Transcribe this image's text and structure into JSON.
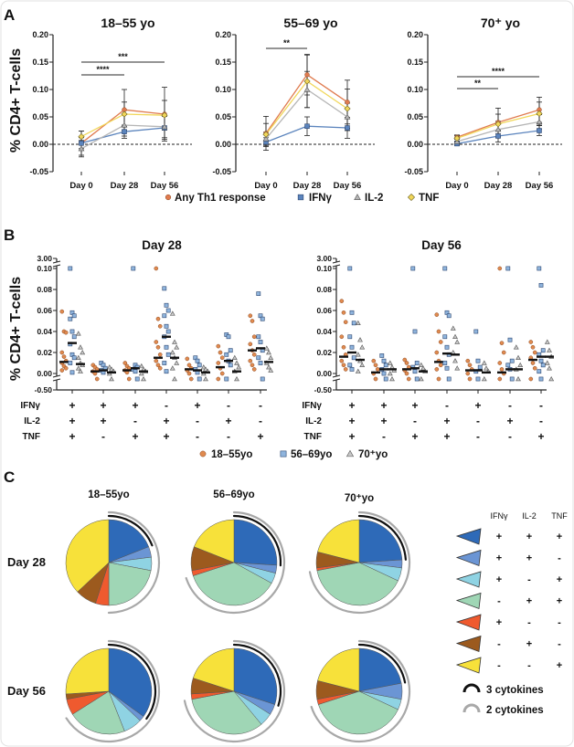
{
  "colors": {
    "any": "#e07b4f",
    "ifn": "#5b84bd",
    "il2": "#b5b5b5",
    "tnf": "#f1d75a",
    "age1": "#e08a4f",
    "age2": "#8fb4dd",
    "age3": "#c8c8c8",
    "pie": [
      "#2e6ab8",
      "#6b95d4",
      "#8fd3e3",
      "#9fd6b5",
      "#ef5a2f",
      "#9c5a1e",
      "#f7e13a"
    ],
    "arc3": "#111111",
    "arc2": "#a8a8a8"
  },
  "chart_data": [
    {
      "panel": "A",
      "type": "line",
      "ylabel": "% CD4+ T-cells",
      "ylim": [
        -0.05,
        0.2
      ],
      "yticks": [
        "0.20",
        "0.15",
        "0.10",
        "0.05",
        "0.00",
        "-0.05"
      ],
      "categories": [
        "Day 0",
        "Day 28",
        "Day 56"
      ],
      "legend": [
        "Any Th1 response",
        "IFNγ",
        "IL-2",
        "TNF"
      ],
      "plots": [
        {
          "title": "18–55 yo",
          "series": [
            {
              "name": "Any Th1 response",
              "values": [
                0.002,
                0.063,
                0.055
              ],
              "err": [
                0.022,
                0.037,
                0.049
              ]
            },
            {
              "name": "IFNγ",
              "values": [
                0.002,
                0.023,
                0.03
              ],
              "err": [
                0.01,
                0.012,
                0.021
              ]
            },
            {
              "name": "IL-2",
              "values": [
                -0.008,
                0.035,
                0.032
              ],
              "err": [
                0.015,
                0.02,
                0.02
              ]
            },
            {
              "name": "TNF",
              "values": [
                0.014,
                0.055,
                0.053
              ],
              "err": [
                0.01,
                0.022,
                0.027
              ]
            }
          ],
          "sig": [
            {
              "from": "Day 0",
              "to": "Day 28",
              "label": "****"
            },
            {
              "from": "Day 0",
              "to": "Day 56",
              "label": "***"
            }
          ]
        },
        {
          "title": "55–69 yo",
          "series": [
            {
              "name": "Any Th1 response",
              "values": [
                0.02,
                0.127,
                0.077
              ],
              "err": [
                0.031,
                0.037,
                0.04
              ]
            },
            {
              "name": "IFNγ",
              "values": [
                0.004,
                0.033,
                0.03
              ],
              "err": [
                0.008,
                0.017,
                0.019
              ]
            },
            {
              "name": "IL-2",
              "values": [
                0.01,
                0.1,
                0.05
              ],
              "err": [
                0.012,
                0.033,
                0.025
              ]
            },
            {
              "name": "TNF",
              "values": [
                0.018,
                0.115,
                0.065
              ],
              "err": [
                0.02,
                0.048,
                0.036
              ]
            }
          ],
          "sig": [
            {
              "from": "Day 0",
              "to": "Day 28",
              "label": "**"
            }
          ]
        },
        {
          "title": "70⁺ yo",
          "series": [
            {
              "name": "Any Th1 response",
              "values": [
                0.013,
                0.04,
                0.063
              ],
              "err": [
                0.004,
                0.026,
                0.023
              ]
            },
            {
              "name": "IFNγ",
              "values": [
                0.001,
                0.015,
                0.025
              ],
              "err": [
                0.003,
                0.011,
                0.009
              ]
            },
            {
              "name": "IL-2",
              "values": [
                0.005,
                0.027,
                0.041
              ],
              "err": [
                0.005,
                0.015,
                0.013
              ]
            },
            {
              "name": "TNF",
              "values": [
                0.011,
                0.037,
                0.056
              ],
              "err": [
                0.005,
                0.018,
                0.021
              ]
            }
          ],
          "sig": [
            {
              "from": "Day 0",
              "to": "Day 28",
              "label": "**"
            },
            {
              "from": "Day 0",
              "to": "Day 56",
              "label": "****"
            }
          ]
        }
      ]
    },
    {
      "panel": "B",
      "type": "scatter",
      "ylabel": "% CD4+ T-cells",
      "yticks": [
        "3.00",
        "0.10",
        "0.08",
        "0.06",
        "0.04",
        "0.02",
        "0.00",
        "-0.50"
      ],
      "axis_breaks": [
        0.1,
        0.0
      ],
      "rows": [
        {
          "label": "IFNγ",
          "signs": [
            "+",
            "+",
            "+",
            "-",
            "+",
            "-",
            "-"
          ]
        },
        {
          "label": "IL-2",
          "signs": [
            "+",
            "+",
            "-",
            "+",
            "-",
            "+",
            "-"
          ]
        },
        {
          "label": "TNF",
          "signs": [
            "+",
            "-",
            "+",
            "+",
            "-",
            "-",
            "+"
          ]
        }
      ],
      "legend": [
        "18–55yo",
        "56–69yo",
        "70⁺yo"
      ],
      "plots": [
        {
          "title": "Day 28",
          "groups": [
            {
              "pts": [
                [
                  0.059,
                  0.04,
                  0.039,
                  0.02,
                  0.016,
                  0.012,
                  0.01,
                  0.007,
                  0.005,
                  0.003
                ],
                [
                  0.11,
                  0.058,
                  0.055,
                  0.052,
                  0.04,
                  0.035,
                  0.028,
                  0.018,
                  0.015,
                  0.01,
                  0.001
                ],
                [
                  0.038,
                  0.025,
                  0.02,
                  0.015,
                  0.01,
                  0.008,
                  0.005,
                  0.002
                ]
              ],
              "median": [
                0.011,
                0.029,
                0.009
              ]
            },
            {
              "pts": [
                [
                  0.008,
                  0.006,
                  0.004,
                  0.002,
                  0.0,
                  -0.01
                ],
                [
                  0.01,
                  0.008,
                  0.005,
                  0.003,
                  0.001
                ],
                [
                  0.006,
                  0.004,
                  0.002,
                  0.0,
                  -0.01
                ]
              ],
              "median": [
                0.002,
                0.003,
                0.001
              ]
            },
            {
              "pts": [
                [
                  0.01,
                  0.007,
                  0.005,
                  0.003,
                  0.001,
                  -0.01
                ],
                [
                  0.11,
                  0.008,
                  0.006,
                  0.004,
                  0.002,
                  -0.01
                ],
                [
                  0.007,
                  0.004,
                  0.002,
                  0.0,
                  -0.01
                ]
              ],
              "median": [
                0.003,
                0.005,
                0.002
              ]
            },
            {
              "pts": [
                [
                  0.11,
                  0.052,
                  0.045,
                  0.03,
                  0.025,
                  0.018,
                  0.012,
                  0.008,
                  0.005
                ],
                [
                  0.081,
                  0.065,
                  0.06,
                  0.055,
                  0.045,
                  0.04,
                  0.035,
                  0.025,
                  0.018,
                  0.01,
                  0.002
                ],
                [
                  0.057,
                  0.03,
                  0.025,
                  0.02,
                  0.015,
                  0.01,
                  0.005,
                  -0.01
                ]
              ],
              "median": [
                0.015,
                0.035,
                0.015
              ]
            },
            {
              "pts": [
                [
                  0.014,
                  0.008,
                  0.005,
                  0.003,
                  0.0,
                  -0.01
                ],
                [
                  0.015,
                  0.012,
                  0.008,
                  0.004,
                  0.001,
                  -0.01
                ],
                [
                  0.006,
                  0.004,
                  0.002,
                  0.0,
                  -0.01
                ]
              ],
              "median": [
                0.004,
                0.003,
                0.001
              ]
            },
            {
              "pts": [
                [
                  0.026,
                  0.02,
                  0.015,
                  0.01,
                  0.005,
                  0.0,
                  -0.01
                ],
                [
                  0.037,
                  0.035,
                  0.022,
                  0.018,
                  0.012,
                  0.008,
                  -0.01
                ],
                [
                  0.015,
                  0.01,
                  0.006,
                  0.002,
                  -0.01
                ]
              ],
              "median": [
                0.006,
                0.012,
                0.002
              ]
            },
            {
              "pts": [
                [
                  0.055,
                  0.05,
                  0.035,
                  0.028,
                  0.022,
                  0.018,
                  0.012,
                  0.008,
                  0.004
                ],
                [
                  0.076,
                  0.055,
                  0.052,
                  0.035,
                  0.03,
                  0.022,
                  0.015,
                  0.01,
                  -0.01
                ],
                [
                  0.024,
                  0.02,
                  0.015,
                  0.01,
                  0.006,
                  0.003
                ]
              ],
              "median": [
                0.022,
                0.024,
                0.011
              ]
            }
          ]
        },
        {
          "title": "Day 56",
          "groups": [
            {
              "pts": [
                [
                  0.069,
                  0.058,
                  0.049,
                  0.035,
                  0.025,
                  0.018,
                  0.012,
                  0.008,
                  0.004
                ],
                [
                  0.11,
                  0.058,
                  0.048,
                  0.035,
                  0.025,
                  0.015,
                  0.008,
                  0.004
                ],
                [
                  0.048,
                  0.032,
                  0.025,
                  0.018,
                  0.012,
                  0.008,
                  0.002
                ]
              ],
              "median": [
                0.016,
                0.02,
                0.013
              ]
            },
            {
              "pts": [
                [
                  0.012,
                  0.008,
                  0.004,
                  0.0,
                  -0.01
                ],
                [
                  0.017,
                  0.012,
                  0.008,
                  0.004,
                  0.0,
                  -0.01
                ],
                [
                  0.01,
                  0.006,
                  0.003,
                  0.0,
                  -0.01
                ]
              ],
              "median": [
                0.001,
                0.004,
                0.004
              ]
            },
            {
              "pts": [
                [
                  0.013,
                  0.01,
                  0.006,
                  0.003,
                  0.0,
                  -0.01
                ],
                [
                  0.11,
                  0.04,
                  0.01,
                  0.006,
                  0.002,
                  -0.01
                ],
                [
                  0.008,
                  0.005,
                  0.002,
                  -0.01
                ]
              ],
              "median": [
                0.004,
                0.005,
                0.002
              ]
            },
            {
              "pts": [
                [
                  0.056,
                  0.04,
                  0.03,
                  0.02,
                  0.012,
                  0.008,
                  0.004,
                  -0.01
                ],
                [
                  0.11,
                  0.058,
                  0.055,
                  0.035,
                  0.025,
                  0.018,
                  0.01,
                  0.005,
                  -0.01
                ],
                [
                  0.043,
                  0.035,
                  0.03,
                  0.02,
                  0.012,
                  0.005
                ]
              ],
              "median": [
                0.011,
                0.019,
                0.018
              ]
            },
            {
              "pts": [
                [
                  0.012,
                  0.008,
                  0.004,
                  0.0,
                  -0.01
                ],
                [
                  0.04,
                  0.012,
                  0.006,
                  0.002,
                  -0.01
                ],
                [
                  0.01,
                  0.005,
                  0.002,
                  -0.01
                ]
              ],
              "median": [
                0.003,
                0.003,
                0.001
              ]
            },
            {
              "pts": [
                [
                  0.11,
                  0.029,
                  0.02,
                  0.01,
                  0.004,
                  0.0,
                  -0.01
                ],
                [
                  0.11,
                  0.032,
                  0.012,
                  0.008,
                  0.004,
                  -0.01
                ],
                [
                  0.025,
                  0.015,
                  0.008,
                  0.004,
                  -0.01
                ]
              ],
              "median": [
                0.001,
                0.004,
                0.004
              ]
            },
            {
              "pts": [
                [
                  0.03,
                  0.025,
                  0.02,
                  0.015,
                  0.01,
                  0.005,
                  -0.01
                ],
                [
                  0.11,
                  0.084,
                  0.022,
                  0.018,
                  0.012,
                  0.008,
                  0.002,
                  -0.01
                ],
                [
                  0.03,
                  0.022,
                  0.016,
                  0.01,
                  0.005,
                  -0.01
                ]
              ],
              "median": [
                0.013,
                0.016,
                0.016
              ]
            }
          ]
        }
      ]
    },
    {
      "panel": "C",
      "type": "pie",
      "columns": [
        "18–55yo",
        "56–69yo",
        "70⁺yo"
      ],
      "rows": [
        "Day 28",
        "Day 56"
      ],
      "slice_order": [
        "IFNγ+IL-2+TNF+",
        "IFNγ+IL-2+TNF-",
        "IFNγ+IL-2-TNF+",
        "IFNγ-IL-2+TNF+",
        "IFNγ+IL-2-TNF-",
        "IFNγ-IL-2+TNF-",
        "IFNγ-IL-2-TNF+"
      ],
      "values": [
        [
          [
            0.19,
            0.04,
            0.05,
            0.22,
            0.05,
            0.08,
            0.37
          ],
          [
            0.26,
            0.03,
            0.04,
            0.37,
            0.02,
            0.09,
            0.19
          ],
          [
            0.24,
            0.03,
            0.05,
            0.4,
            0.01,
            0.06,
            0.21
          ]
        ],
        [
          [
            0.35,
            0.02,
            0.07,
            0.22,
            0.06,
            0.02,
            0.26
          ],
          [
            0.3,
            0.04,
            0.05,
            0.33,
            0.02,
            0.06,
            0.2
          ],
          [
            0.22,
            0.06,
            0.04,
            0.38,
            0.02,
            0.07,
            0.21
          ]
        ]
      ],
      "legend_header": [
        "IFNγ",
        "IL-2",
        "TNF"
      ],
      "legend_rows": [
        [
          "+",
          "+",
          "+"
        ],
        [
          "+",
          "+",
          "-"
        ],
        [
          "+",
          "-",
          "+"
        ],
        [
          "-",
          "+",
          "+"
        ],
        [
          "+",
          "-",
          "-"
        ],
        [
          "-",
          "+",
          "-"
        ],
        [
          "-",
          "-",
          "+"
        ]
      ],
      "arc_legend": [
        "3 cytokines",
        "2 cytokines"
      ]
    }
  ],
  "panel_labels": [
    "A",
    "B",
    "C"
  ]
}
